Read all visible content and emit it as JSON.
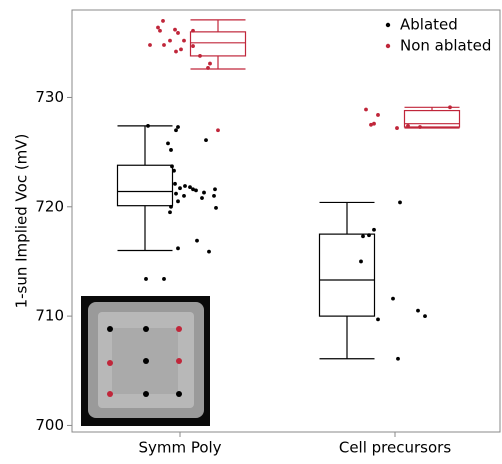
{
  "chart_data": {
    "type": "box",
    "ylabel": "1-sun Implied Voc (mV)",
    "categories": [
      "Symm Poly",
      "Cell precursors"
    ],
    "ylim": [
      699.4,
      738
    ],
    "yticks": [
      700,
      710,
      720,
      730
    ],
    "legend": "upper right",
    "series": [
      {
        "name": "Ablated",
        "color": "#000000",
        "boxes": [
          {
            "low": 716,
            "q1": 720.1,
            "median": 721.4,
            "q3": 723.8,
            "high": 727.4
          },
          {
            "low": 706.1,
            "q1": 710,
            "median": 713.3,
            "q3": 717.5,
            "high": 720.4
          }
        ],
        "points": [
          [
            727.4,
            713.4,
            713.4,
            727.3,
            727.0,
            725.8,
            725.2,
            726.1,
            723.7,
            722.1,
            721.7,
            721.9,
            721.8,
            721.5,
            721.2,
            721.0,
            721.6,
            721.3,
            721.6,
            721.0,
            720.8,
            719.9,
            719.5,
            720.5,
            716.2,
            716.9,
            715.9,
            720.0,
            723.3
          ],
          [
            720.4,
            717.9,
            717.4,
            717.3,
            715.0,
            711.6,
            710.5,
            710.0,
            709.7,
            706.1
          ]
        ]
      },
      {
        "name": "Non ablated",
        "color": "#c0263a",
        "boxes": [
          {
            "low": 732.6,
            "q1": 733.8,
            "median": 735.0,
            "q3": 736.0,
            "high": 737.1
          },
          {
            "low": 727.2,
            "q1": 727.3,
            "median": 727.6,
            "q3": 728.8,
            "high": 729.1
          }
        ],
        "points": [
          [
            737.0,
            736.4,
            736.1,
            736.2,
            735.9,
            735.2,
            735.2,
            734.8,
            734.8,
            734.4,
            734.7,
            733.8,
            733.1,
            732.7,
            736.1,
            734.2,
            727.0
          ],
          [
            728.9,
            728.4,
            727.6,
            727.5,
            727.2,
            727.4,
            729.1,
            727.3
          ]
        ]
      }
    ]
  }
}
